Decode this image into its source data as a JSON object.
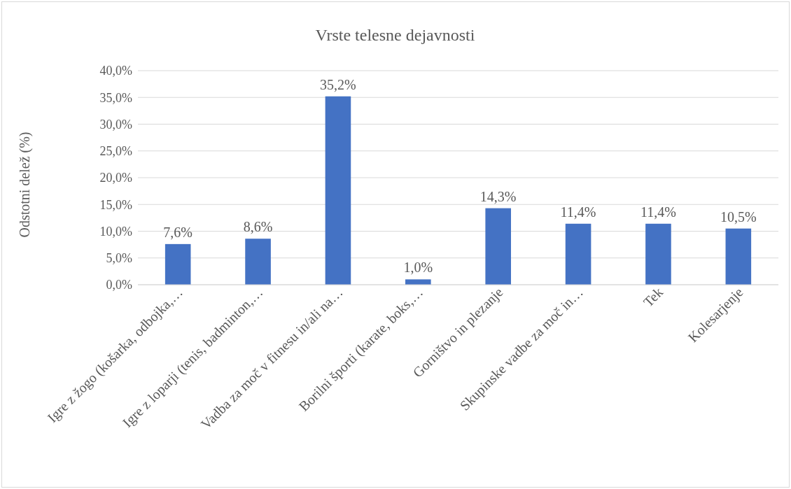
{
  "chart_data": {
    "type": "bar",
    "title": "Vrste telesne dejavnosti",
    "ylabel": "Odstotni delež (%)",
    "categories": [
      "Igre z žogo (košarka, odbojka,…",
      "Igre z loparji (tenis, badminton,…",
      "Vadba za moč v fitnesu in/ali na…",
      "Borilni športi (karate, boks,…",
      "Gorništvo in plezanje",
      "Skupinske vadbe za moč in…",
      "Tek",
      "Kolesarjenje"
    ],
    "values": [
      7.6,
      8.6,
      35.2,
      1.0,
      14.3,
      11.4,
      11.4,
      10.5
    ],
    "value_labels": [
      "7,6%",
      "8,6%",
      "35,2%",
      "1,0%",
      "14,3%",
      "11,4%",
      "11,4%",
      "10,5%"
    ],
    "color": "#4472c4",
    "ylim": [
      0,
      40
    ],
    "yticks": [
      {
        "value": 0,
        "label": "0,0%"
      },
      {
        "value": 5,
        "label": "5,0%"
      },
      {
        "value": 10,
        "label": "10,0%"
      },
      {
        "value": 15,
        "label": "15,0%"
      },
      {
        "value": 20,
        "label": "20,0%"
      },
      {
        "value": 25,
        "label": "25,0%"
      },
      {
        "value": 30,
        "label": "30,0%"
      },
      {
        "value": 35,
        "label": "35,0%"
      },
      {
        "value": 40,
        "label": "40,0%"
      }
    ],
    "grid": "y"
  }
}
